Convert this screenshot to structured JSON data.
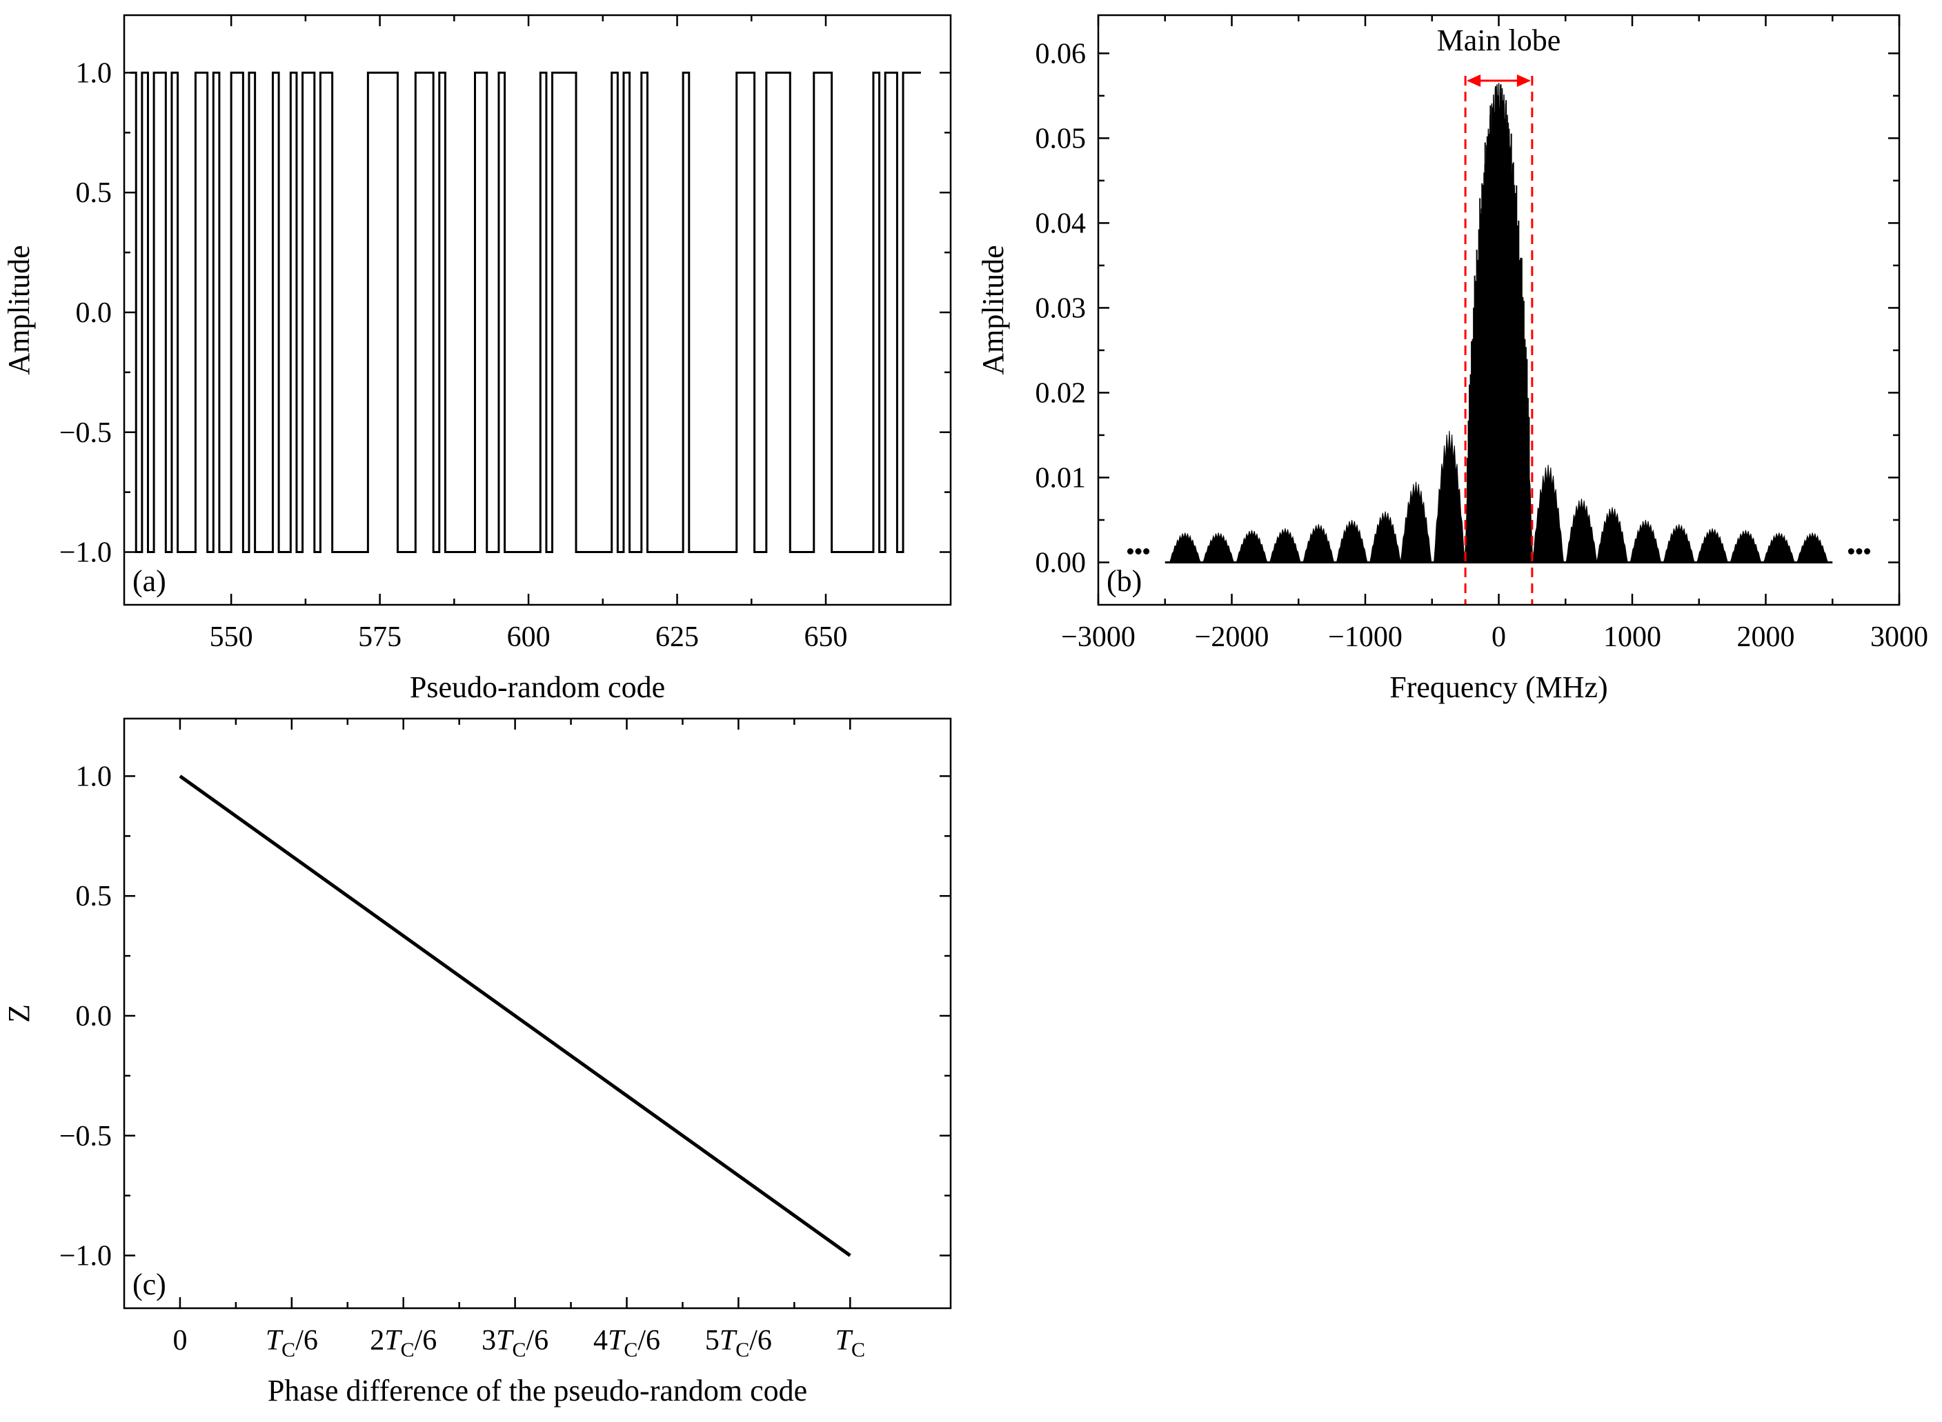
{
  "chart_data": [
    {
      "id": "a",
      "type": "line",
      "style": "step",
      "panel_label": "(a)",
      "xlabel": "Pseudo-random code",
      "ylabel": "Amplitude",
      "xlim": [
        532,
        671
      ],
      "ylim": [
        -1.22,
        1.24
      ],
      "xticks": [
        550,
        575,
        600,
        625,
        650
      ],
      "xtick_labels": [
        "550",
        "575",
        "600",
        "625",
        "650"
      ],
      "yticks": [
        -1.0,
        -0.5,
        0.0,
        0.5,
        1.0
      ],
      "ytick_labels": [
        "−1.0",
        "−0.5",
        "0.0",
        "0.5",
        "1.0"
      ],
      "series": [
        {
          "name": "pseudo-random code",
          "x_start": 533,
          "values": [
            1,
            -1,
            1,
            -1,
            1,
            1,
            -1,
            1,
            -1,
            -1,
            -1,
            1,
            1,
            -1,
            1,
            -1,
            -1,
            1,
            1,
            -1,
            1,
            -1,
            -1,
            -1,
            1,
            -1,
            -1,
            1,
            -1,
            1,
            1,
            -1,
            1,
            1,
            -1,
            -1,
            -1,
            -1,
            -1,
            -1,
            1,
            1,
            1,
            1,
            1,
            -1,
            -1,
            -1,
            1,
            1,
            1,
            -1,
            1,
            -1,
            -1,
            -1,
            -1,
            -1,
            1,
            1,
            -1,
            -1,
            1,
            -1,
            -1,
            -1,
            -1,
            -1,
            -1,
            1,
            -1,
            1,
            1,
            1,
            1,
            -1,
            -1,
            -1,
            -1,
            -1,
            -1,
            1,
            -1,
            1,
            -1,
            -1,
            1,
            -1,
            -1,
            -1,
            -1,
            -1,
            -1,
            1,
            -1,
            -1,
            -1,
            -1,
            -1,
            -1,
            -1,
            -1,
            1,
            1,
            1,
            -1,
            -1,
            1,
            1,
            1,
            1,
            -1,
            -1,
            -1,
            -1,
            1,
            1,
            1,
            -1,
            -1,
            -1,
            -1,
            -1,
            -1,
            -1,
            1,
            -1,
            1,
            1,
            -1,
            1,
            1,
            1
          ]
        }
      ]
    },
    {
      "id": "b",
      "type": "line",
      "style": "filled-envelope",
      "panel_label": "(b)",
      "xlabel": "Frequency (MHz)",
      "ylabel": "Amplitude",
      "xlim": [
        -3000,
        3000
      ],
      "ylim": [
        -0.005,
        0.0645
      ],
      "xticks": [
        -3000,
        -2000,
        -1000,
        0,
        1000,
        2000,
        3000
      ],
      "xtick_labels": [
        "−3000",
        "−2000",
        "−1000",
        "0",
        "1000",
        "2000",
        "3000"
      ],
      "yticks": [
        0.0,
        0.01,
        0.02,
        0.03,
        0.04,
        0.05,
        0.06
      ],
      "ytick_labels": [
        "0.00",
        "0.01",
        "0.02",
        "0.03",
        "0.04",
        "0.05",
        "0.06"
      ],
      "main_lobe": {
        "label": "Main lobe",
        "x_range": [
          -250,
          250
        ],
        "peak": 0.0565,
        "color": "#ff0000"
      },
      "side_lobes": [
        {
          "center": -2350,
          "peak": 0.0035
        },
        {
          "center": -2100,
          "peak": 0.0035
        },
        {
          "center": -1850,
          "peak": 0.0038
        },
        {
          "center": -1600,
          "peak": 0.004
        },
        {
          "center": -1350,
          "peak": 0.0045
        },
        {
          "center": -1100,
          "peak": 0.005
        },
        {
          "center": -850,
          "peak": 0.006
        },
        {
          "center": -620,
          "peak": 0.0095
        },
        {
          "center": -370,
          "peak": 0.0155
        },
        {
          "center": 370,
          "peak": 0.0115
        },
        {
          "center": 620,
          "peak": 0.0075
        },
        {
          "center": 850,
          "peak": 0.0065
        },
        {
          "center": 1100,
          "peak": 0.005
        },
        {
          "center": 1350,
          "peak": 0.0045
        },
        {
          "center": 1600,
          "peak": 0.004
        },
        {
          "center": 1850,
          "peak": 0.0038
        },
        {
          "center": 2100,
          "peak": 0.0035
        },
        {
          "center": 2350,
          "peak": 0.0035
        }
      ],
      "data_extent": [
        -2500,
        2500
      ],
      "ellipsis_marks": [
        -2700,
        2700
      ]
    },
    {
      "id": "c",
      "type": "line",
      "panel_label": "(c)",
      "xlabel": "Phase difference of the pseudo-random code",
      "ylabel": "Z",
      "xlim": [
        -0.5,
        6.9
      ],
      "ylim": [
        -1.22,
        1.24
      ],
      "xticks": [
        0,
        1,
        2,
        3,
        4,
        5,
        6
      ],
      "xtick_labels": [
        {
          "prefix": "",
          "italic": "",
          "sub": "",
          "suffix": "0"
        },
        {
          "prefix": "",
          "italic": "T",
          "sub": "C",
          "suffix": "/6"
        },
        {
          "prefix": "2",
          "italic": "T",
          "sub": "C",
          "suffix": "/6"
        },
        {
          "prefix": "3",
          "italic": "T",
          "sub": "C",
          "suffix": "/6"
        },
        {
          "prefix": "4",
          "italic": "T",
          "sub": "C",
          "suffix": "/6"
        },
        {
          "prefix": "5",
          "italic": "T",
          "sub": "C",
          "suffix": "/6"
        },
        {
          "prefix": "",
          "italic": "T",
          "sub": "C",
          "suffix": ""
        }
      ],
      "yticks": [
        -1.0,
        -0.5,
        0.0,
        0.5,
        1.0
      ],
      "ytick_labels": [
        "−1.0",
        "−0.5",
        "0.0",
        "0.5",
        "1.0"
      ],
      "series": [
        {
          "name": "Z",
          "x": [
            0,
            6
          ],
          "y": [
            1.0,
            -1.0
          ]
        }
      ]
    }
  ]
}
